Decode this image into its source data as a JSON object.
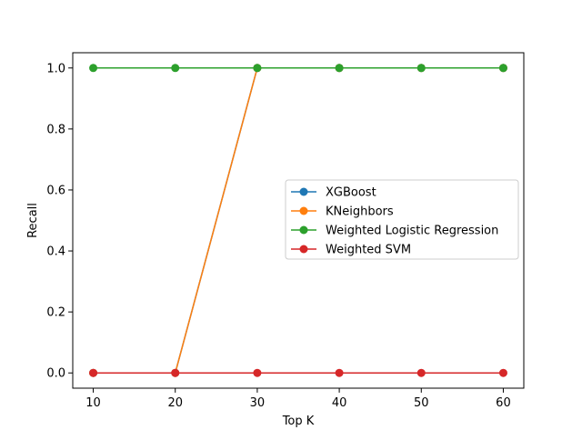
{
  "chart_data": {
    "type": "line",
    "title": "",
    "xlabel": "Top K",
    "ylabel": "Recall",
    "x": [
      10,
      20,
      30,
      40,
      50,
      60
    ],
    "xlim": [
      7.5,
      62.5
    ],
    "ylim": [
      -0.05,
      1.05
    ],
    "xticks": [
      10,
      20,
      30,
      40,
      50,
      60
    ],
    "yticks": [
      0.0,
      0.2,
      0.4,
      0.6,
      0.8,
      1.0
    ],
    "xtick_labels": [
      "10",
      "20",
      "30",
      "40",
      "50",
      "60"
    ],
    "ytick_labels": [
      "0.0",
      "0.2",
      "0.4",
      "0.6",
      "0.8",
      "1.0"
    ],
    "grid": false,
    "legend_position": "center-right",
    "series": [
      {
        "name": "XGBoost",
        "color": "#1f77b4",
        "values": [
          0.0,
          0.0,
          1.0,
          1.0,
          1.0,
          1.0
        ]
      },
      {
        "name": "KNeighbors",
        "color": "#ff7f0e",
        "values": [
          0.0,
          0.0,
          1.0,
          1.0,
          1.0,
          1.0
        ]
      },
      {
        "name": "Weighted Logistic Regression",
        "color": "#2ca02c",
        "values": [
          1.0,
          1.0,
          1.0,
          1.0,
          1.0,
          1.0
        ]
      },
      {
        "name": "Weighted SVM",
        "color": "#d62728",
        "values": [
          0.0,
          0.0,
          0.0,
          0.0,
          0.0,
          0.0
        ]
      }
    ]
  }
}
